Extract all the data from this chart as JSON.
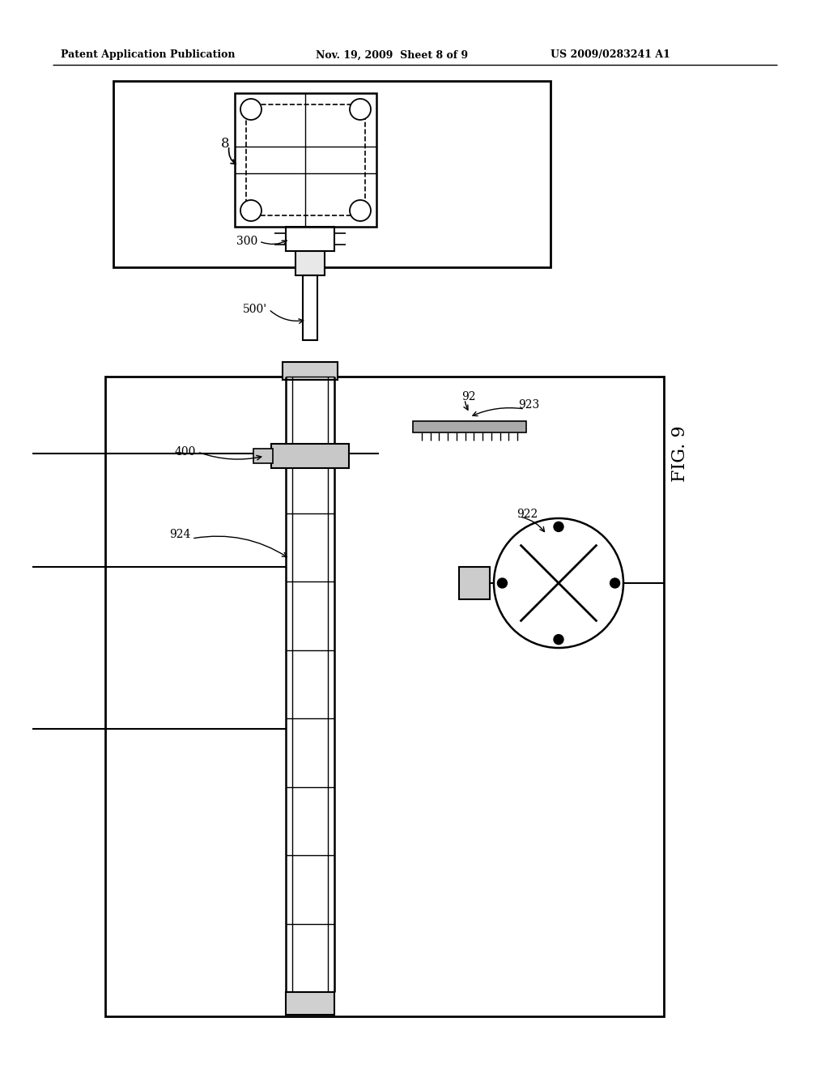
{
  "background_color": "#ffffff",
  "line_color": "#000000",
  "header_left": "Patent Application Publication",
  "header_center": "Nov. 19, 2009  Sheet 8 of 9",
  "header_right": "US 2009/0283241 A1",
  "fig_label": "FIG. 9"
}
